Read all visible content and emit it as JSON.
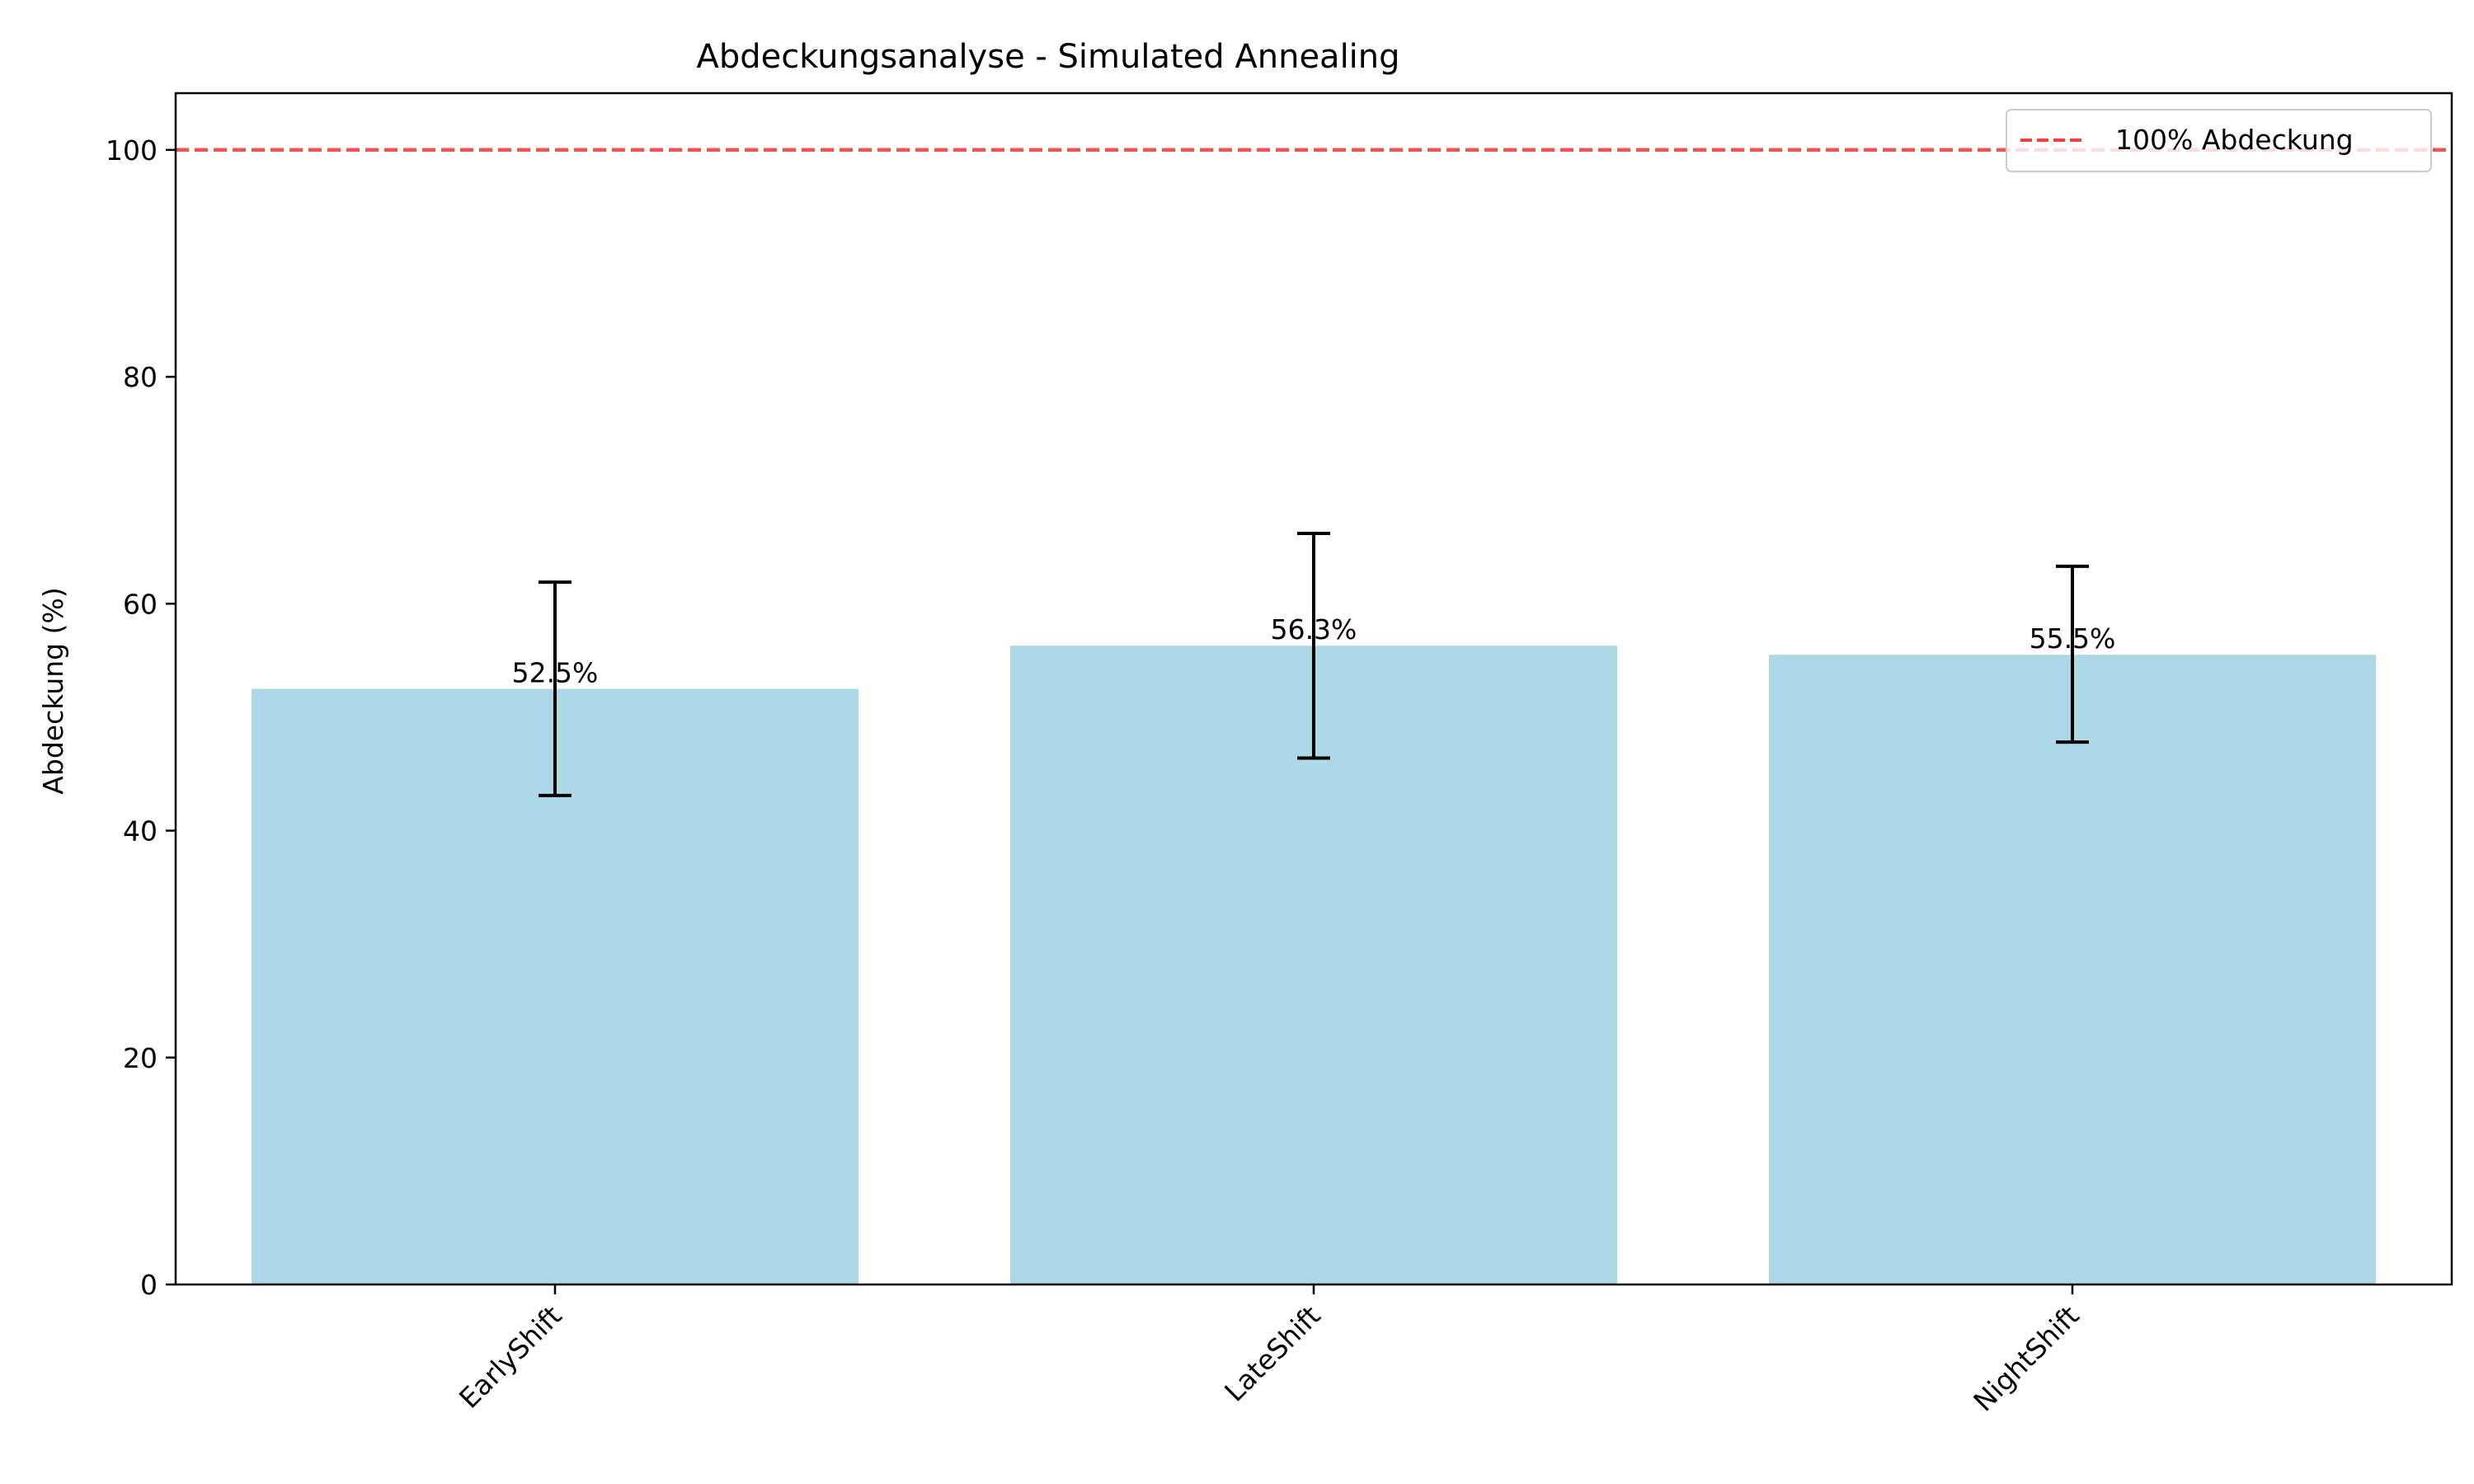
{
  "chart_data": {
    "type": "bar",
    "title": "Abdeckungsanalyse - Simulated Annealing",
    "xlabel": "",
    "ylabel": "Abdeckung (%)",
    "categories": [
      "EarlyShift",
      "LateShift",
      "NightShift"
    ],
    "values": [
      52.5,
      56.3,
      55.5
    ],
    "error_low": [
      43.1,
      46.4,
      47.8
    ],
    "error_high": [
      61.9,
      66.2,
      63.3
    ],
    "data_labels": [
      "52.5%",
      "56.3%",
      "55.5%"
    ],
    "ylim": [
      0,
      105
    ],
    "yticks": [
      0,
      20,
      40,
      60,
      80,
      100
    ],
    "ytick_labels": [
      "0",
      "20",
      "40",
      "60",
      "80",
      "100"
    ],
    "reference_line": {
      "value": 100,
      "label": "100% Abdeckung",
      "color": "#f04040",
      "style": "dashed"
    },
    "bar_color": "#add8e6",
    "error_color": "#000000",
    "legend_position": "top-right",
    "grid": false
  }
}
